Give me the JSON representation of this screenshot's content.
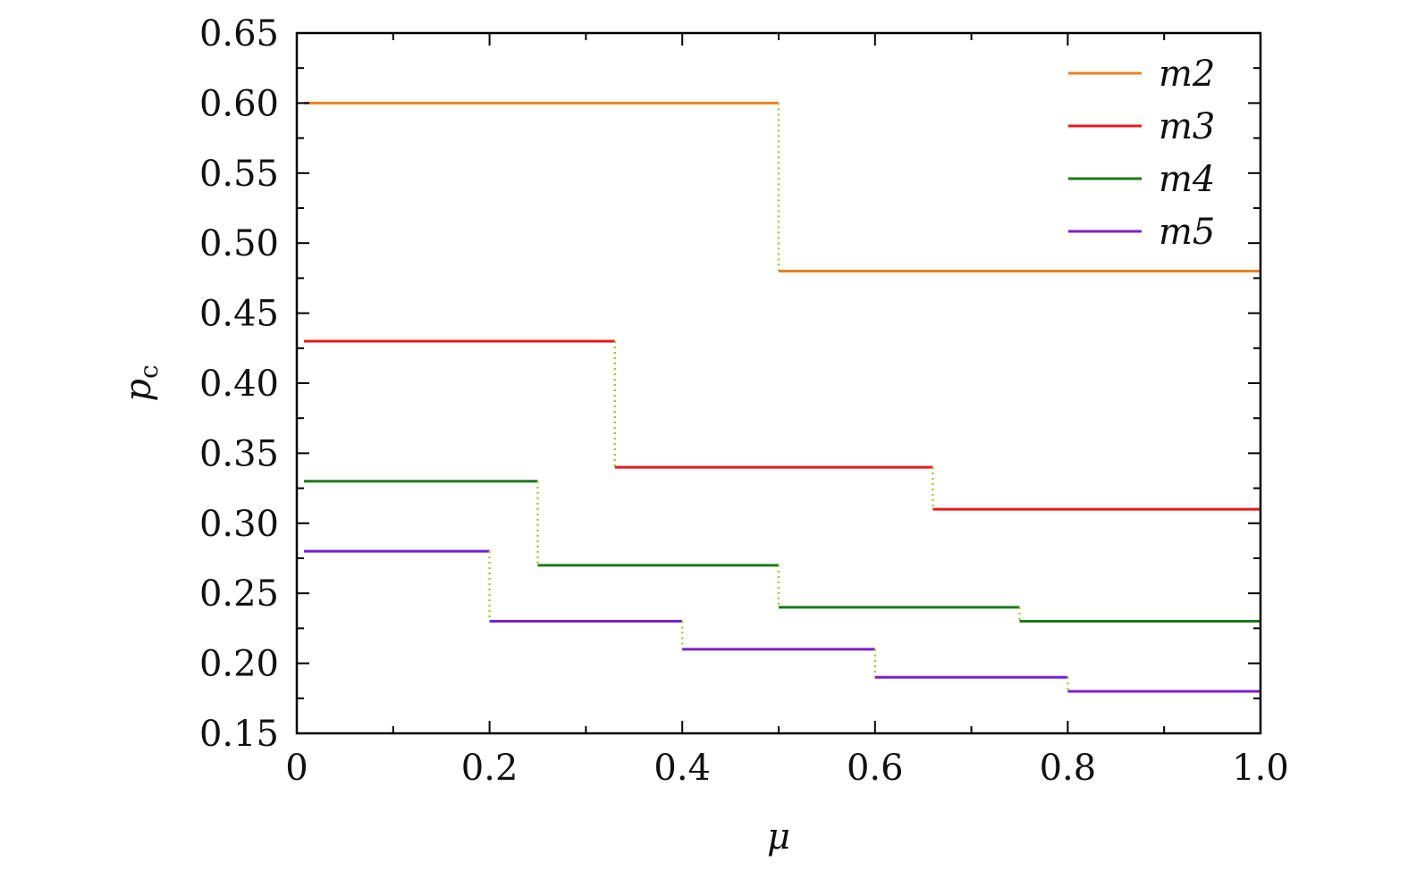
{
  "chart_data": {
    "type": "line",
    "step": true,
    "xlabel": "μ",
    "ylabel": "p",
    "ylabel_sub": "c",
    "xlim": [
      0,
      1.0
    ],
    "ylim": [
      0.15,
      0.65
    ],
    "x_ticks": [
      0,
      0.2,
      0.4,
      0.6,
      0.8,
      1.0
    ],
    "x_tick_labels": [
      "0",
      "0.2",
      "0.4",
      "0.6",
      "0.8",
      "1.0"
    ],
    "y_ticks": [
      0.15,
      0.2,
      0.25,
      0.3,
      0.35,
      0.4,
      0.45,
      0.5,
      0.55,
      0.6,
      0.65
    ],
    "y_tick_labels": [
      "0.15",
      "0.20",
      "0.25",
      "0.30",
      "0.35",
      "0.40",
      "0.45",
      "0.50",
      "0.55",
      "0.60",
      "0.65"
    ],
    "grid": false,
    "legend_position": "top-right",
    "transition_color": "#9ACD32",
    "series": [
      {
        "name": "m2",
        "color": "#E8821E",
        "breaks": [
          0,
          0.5,
          1.0
        ],
        "values": [
          0.6,
          0.48
        ]
      },
      {
        "name": "m3",
        "color": "#E41A1C",
        "breaks": [
          0,
          0.33,
          0.66,
          1.0
        ],
        "values": [
          0.43,
          0.34,
          0.31
        ]
      },
      {
        "name": "m4",
        "color": "#1A7A1A",
        "breaks": [
          0,
          0.25,
          0.5,
          0.75,
          1.0
        ],
        "values": [
          0.33,
          0.27,
          0.24,
          0.23
        ]
      },
      {
        "name": "m5",
        "color": "#7B1FD1",
        "breaks": [
          0,
          0.2,
          0.4,
          0.6,
          0.8,
          1.0
        ],
        "values": [
          0.28,
          0.23,
          0.21,
          0.19,
          0.18
        ]
      }
    ]
  }
}
